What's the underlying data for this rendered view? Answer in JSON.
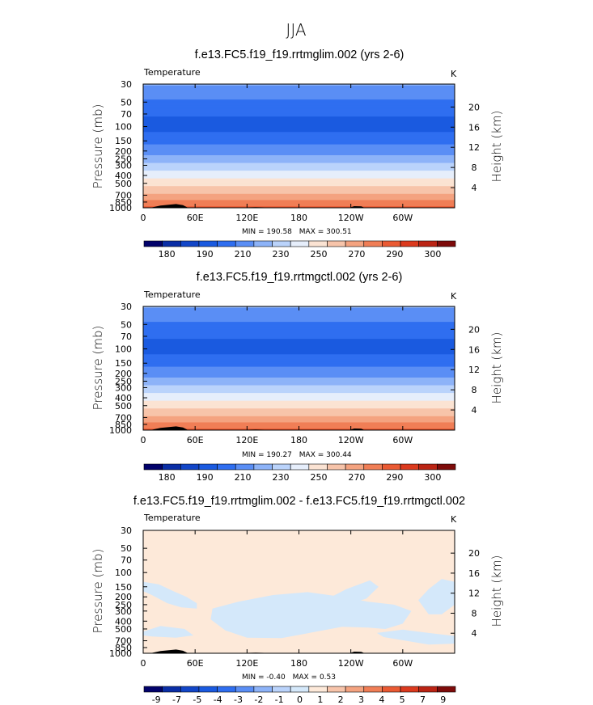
{
  "figure": {
    "title": "JJA"
  },
  "colors": {
    "temp_palette": [
      "#02026b",
      "#0a2ea6",
      "#1246c8",
      "#1a5ae0",
      "#2f6ef0",
      "#5a8ef5",
      "#8db3f8",
      "#bad3fb",
      "#e6eefb",
      "#fbe3d3",
      "#f7c4aa",
      "#f4a380",
      "#f07e56",
      "#ea5a33",
      "#dc3a1e",
      "#bb2414",
      "#7e0b0a"
    ],
    "diff_palette": [
      "#02026b",
      "#0a2ea6",
      "#1246c8",
      "#1a5ae0",
      "#2f6ef0",
      "#5a8ef5",
      "#8db3f8",
      "#bad3fb",
      "#d4e8fa",
      "#fde9d9",
      "#f7c4aa",
      "#f4a380",
      "#f07e56",
      "#ea5a33",
      "#dc3a1e",
      "#bb2414",
      "#7e0b0a"
    ],
    "diff_negative_fill": "#d4e8fa",
    "diff_positive_fill": "#fde9d9",
    "terrain": "#000000"
  },
  "chart_data": [
    {
      "type": "heatmap",
      "title": "f.e13.FC5.f19_f19.rrtmglim.002 (yrs 2-6)",
      "variable": "Temperature",
      "units": "K",
      "ylabel": "Pressure (mb)",
      "ylabel_right": "Height (km)",
      "x_ticks": [
        "0",
        "60E",
        "120E",
        "180",
        "120W",
        "60W"
      ],
      "x_tick_values": [
        0,
        60,
        120,
        180,
        240,
        300
      ],
      "xlim": [
        0,
        360
      ],
      "y_ticks": [
        "30",
        "50",
        "70",
        "100",
        "150",
        "200",
        "250",
        "300",
        "400",
        "500",
        "700",
        "850",
        "1000"
      ],
      "y_tick_values": [
        30,
        50,
        70,
        100,
        150,
        200,
        250,
        300,
        400,
        500,
        700,
        850,
        1000
      ],
      "ylim": [
        1000,
        30
      ],
      "y_scale": "log",
      "height_ticks": [
        "4",
        "8",
        "12",
        "16",
        "20"
      ],
      "height_tick_values": [
        4,
        8,
        12,
        16,
        20
      ],
      "stats": {
        "min_label": "MIN = ",
        "min": "190.58",
        "max_label": "MAX = ",
        "max": "300.51"
      },
      "colorbar_ticks": [
        "180",
        "190",
        "210",
        "230",
        "250",
        "270",
        "290",
        "300"
      ],
      "profile": {
        "pressure": [
          30,
          40,
          50,
          70,
          100,
          150,
          200,
          250,
          300,
          400,
          500,
          700,
          850,
          1000
        ],
        "temperature": [
          222,
          213,
          208,
          201,
          196,
          206,
          216,
          224,
          232,
          246,
          256,
          272,
          283,
          292
        ]
      }
    },
    {
      "type": "heatmap",
      "title": "f.e13.FC5.f19_f19.rrtmgctl.002 (yrs 2-6)",
      "variable": "Temperature",
      "units": "K",
      "ylabel": "Pressure (mb)",
      "ylabel_right": "Height (km)",
      "x_ticks": [
        "0",
        "60E",
        "120E",
        "180",
        "120W",
        "60W"
      ],
      "x_tick_values": [
        0,
        60,
        120,
        180,
        240,
        300
      ],
      "xlim": [
        0,
        360
      ],
      "y_ticks": [
        "30",
        "50",
        "70",
        "100",
        "150",
        "200",
        "250",
        "300",
        "400",
        "500",
        "700",
        "850",
        "1000"
      ],
      "y_tick_values": [
        30,
        50,
        70,
        100,
        150,
        200,
        250,
        300,
        400,
        500,
        700,
        850,
        1000
      ],
      "ylim": [
        1000,
        30
      ],
      "y_scale": "log",
      "height_ticks": [
        "4",
        "8",
        "12",
        "16",
        "20"
      ],
      "height_tick_values": [
        4,
        8,
        12,
        16,
        20
      ],
      "stats": {
        "min_label": "MIN = ",
        "min": "190.27",
        "max_label": "MAX = ",
        "max": "300.44"
      },
      "colorbar_ticks": [
        "180",
        "190",
        "210",
        "230",
        "250",
        "270",
        "290",
        "300"
      ],
      "profile": {
        "pressure": [
          30,
          40,
          50,
          70,
          100,
          150,
          200,
          250,
          300,
          400,
          500,
          700,
          850,
          1000
        ],
        "temperature": [
          222,
          213,
          208,
          201,
          196,
          206,
          216,
          224,
          232,
          246,
          256,
          272,
          283,
          292
        ]
      }
    },
    {
      "type": "heatmap",
      "title": "f.e13.FC5.f19_f19.rrtmglim.002 - f.e13.FC5.f19_f19.rrtmgctl.002",
      "variable": "Temperature",
      "units": "K",
      "ylabel": "Pressure (mb)",
      "ylabel_right": "Height (km)",
      "x_ticks": [
        "0",
        "60E",
        "120E",
        "180",
        "120W",
        "60W"
      ],
      "x_tick_values": [
        0,
        60,
        120,
        180,
        240,
        300
      ],
      "xlim": [
        0,
        360
      ],
      "y_ticks": [
        "30",
        "50",
        "70",
        "100",
        "150",
        "200",
        "250",
        "300",
        "400",
        "500",
        "700",
        "850",
        "1000"
      ],
      "y_tick_values": [
        30,
        50,
        70,
        100,
        150,
        200,
        250,
        300,
        400,
        500,
        700,
        850,
        1000
      ],
      "ylim": [
        1000,
        30
      ],
      "y_scale": "log",
      "height_ticks": [
        "4",
        "8",
        "12",
        "16",
        "20"
      ],
      "height_tick_values": [
        4,
        8,
        12,
        16,
        20
      ],
      "stats": {
        "min_label": "MIN = ",
        "min": "-0.40",
        "max_label": "MAX = ",
        "max": "0.53"
      },
      "colorbar_ticks": [
        "-9",
        "-7",
        "-5",
        "-4",
        "-3",
        "-2",
        "-1",
        "0",
        "1",
        "2",
        "3",
        "4",
        "5",
        "7",
        "9"
      ],
      "negative_regions": [
        {
          "lon": [
            0,
            18,
            35,
            50,
            62,
            62,
            44,
            28,
            10,
            0
          ],
          "pres": [
            130,
            140,
            170,
            200,
            240,
            280,
            270,
            240,
            190,
            170
          ]
        },
        {
          "lon": [
            330,
            345,
            360,
            360,
            345,
            330,
            318
          ],
          "pres": [
            160,
            120,
            130,
            250,
            330,
            330,
            220
          ]
        },
        {
          "lon": [
            80,
            110,
            150,
            190,
            230,
            260,
            290,
            310,
            300,
            280,
            260,
            230,
            200,
            160,
            120,
            95,
            78
          ],
          "pres": [
            280,
            230,
            190,
            175,
            200,
            230,
            250,
            300,
            430,
            500,
            480,
            470,
            540,
            650,
            640,
            520,
            380
          ]
        },
        {
          "lon": [
            210,
            235,
            262,
            272,
            258,
            238,
            220
          ],
          "pres": [
            220,
            160,
            125,
            150,
            210,
            245,
            250
          ]
        },
        {
          "lon": [
            0,
            20,
            48,
            58,
            38,
            10,
            0
          ],
          "pres": [
            540,
            460,
            500,
            600,
            640,
            620,
            600
          ]
        },
        {
          "lon": [
            270,
            300,
            330,
            360,
            360,
            330,
            300,
            278
          ],
          "pres": [
            560,
            510,
            560,
            610,
            760,
            780,
            690,
            630
          ]
        }
      ]
    }
  ]
}
